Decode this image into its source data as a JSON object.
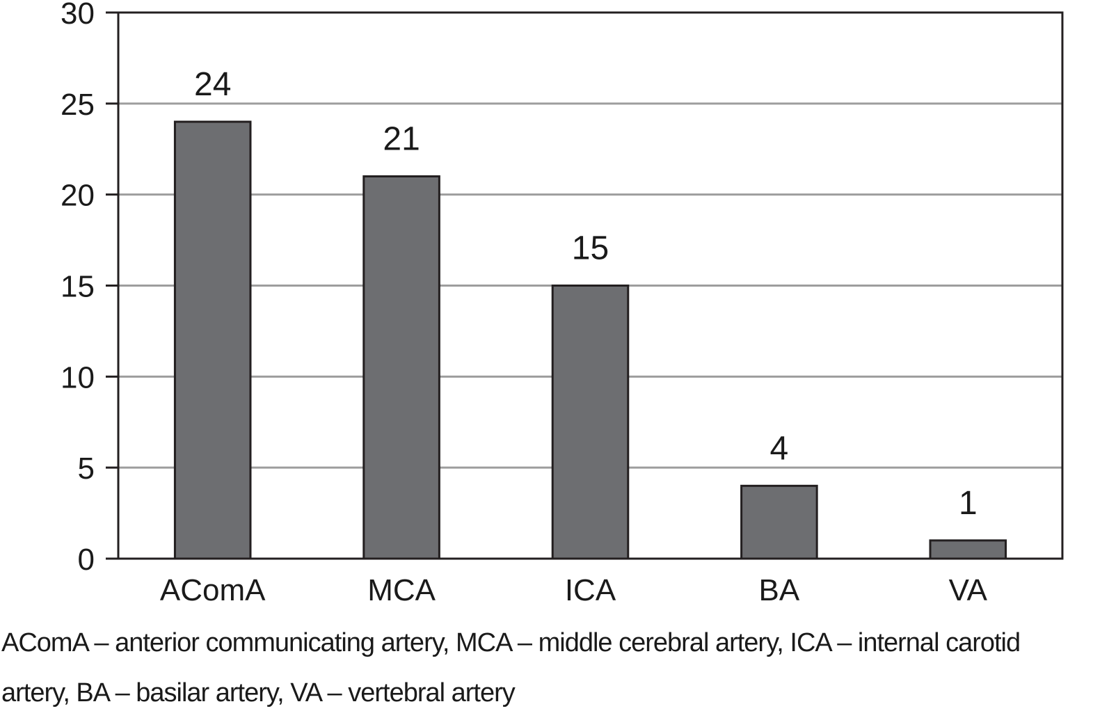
{
  "chart_data": {
    "type": "bar",
    "categories": [
      "AComA",
      "MCA",
      "ICA",
      "BA",
      "VA"
    ],
    "values": [
      24,
      21,
      15,
      4,
      1
    ],
    "data_labels": [
      "24",
      "21",
      "15",
      "4",
      "1"
    ],
    "title": "",
    "xlabel": "",
    "ylabel": "",
    "ylim": [
      0,
      30
    ],
    "yticks": [
      "0",
      "5",
      "10",
      "15",
      "20",
      "25",
      "30"
    ],
    "grid": "horizontal",
    "legend": "none",
    "bar_color": "#6d6e71",
    "bar_outline_color": "#231f20",
    "grid_color": "#9d9d9d"
  },
  "caption": {
    "line1": "AComA – anterior communicating artery, MCA – middle cerebral artery, ICA – internal carotid",
    "line2": "artery, BA – basilar artery, VA – vertebral artery"
  }
}
